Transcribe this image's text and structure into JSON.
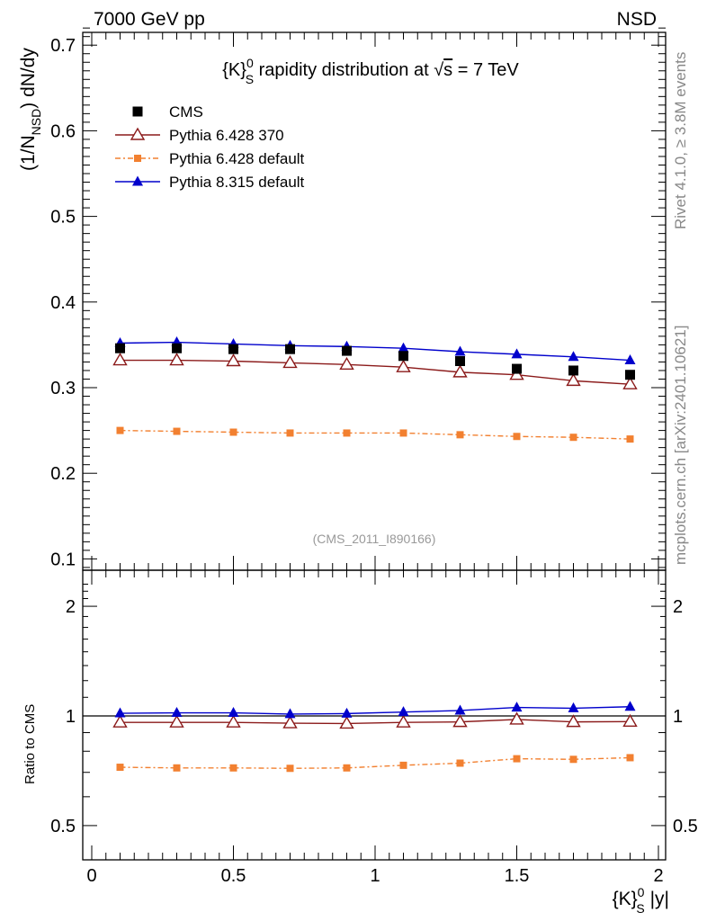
{
  "header": {
    "left": "7000 GeV pp",
    "right": "NSD"
  },
  "side_texts": {
    "rivet": "Rivet 4.1.0, ≥ 3.8M events",
    "mcplots": "mcplots.cern.ch [arXiv:2401.10621]"
  },
  "watermark": "(CMS_2011_I890166)",
  "title": {
    "prefix": "{K}",
    "sup": "0",
    "sub": "S",
    "rest": " rapidity distribution at ",
    "sqrt_symbol": "√",
    "sqrt_arg": "s",
    "energy": " = 7 TeV"
  },
  "ylabel_main": {
    "part1": "(1/N",
    "sub": "NSD",
    "part2": ") dN/dy"
  },
  "ylabel_ratio": "Ratio to CMS",
  "xlabel": {
    "prefix": "{K}",
    "sup": "0",
    "sub": "S",
    "suffix": " |y|"
  },
  "colors": {
    "cms": "#000000",
    "py6_370": "#8b1a1a",
    "py6_default": "#f28030",
    "py8": "#0000cc"
  },
  "chart_data": [
    {
      "type": "scatter",
      "panel": "main",
      "title": "{K}0S rapidity distribution at √s = 7 TeV",
      "xlabel": "{K}0S |y|",
      "ylabel": "(1/N_NSD) dN/dy",
      "xlim": [
        -0.05,
        2.05
      ],
      "ylim": [
        0.09,
        0.72
      ],
      "xticks": [
        "0",
        "0.5",
        "1",
        "1.5",
        "2"
      ],
      "yticks": [
        "0.1",
        "0.2",
        "0.3",
        "0.4",
        "0.5",
        "0.6",
        "0.7"
      ],
      "x": [
        0.1,
        0.3,
        0.5,
        0.7,
        0.9,
        1.1,
        1.3,
        1.5,
        1.7,
        1.9
      ],
      "series": [
        {
          "name": "CMS",
          "style": "data",
          "marker": "square",
          "values": [
            0.346,
            0.346,
            0.345,
            0.345,
            0.343,
            0.337,
            0.331,
            0.322,
            0.32,
            0.315
          ]
        },
        {
          "name": "Pythia 6.428 370",
          "style": "solid",
          "marker": "open-triangle",
          "values": [
            0.332,
            0.332,
            0.331,
            0.329,
            0.327,
            0.324,
            0.318,
            0.315,
            0.308,
            0.304
          ]
        },
        {
          "name": "Pythia 6.428 default",
          "style": "dashdot",
          "marker": "small-square",
          "values": [
            0.25,
            0.249,
            0.248,
            0.247,
            0.247,
            0.247,
            0.245,
            0.243,
            0.242,
            0.24
          ]
        },
        {
          "name": "Pythia 8.315 default",
          "style": "solid",
          "marker": "filled-triangle",
          "values": [
            0.352,
            0.353,
            0.351,
            0.349,
            0.348,
            0.346,
            0.342,
            0.339,
            0.336,
            0.332
          ]
        }
      ]
    },
    {
      "type": "scatter",
      "panel": "ratio",
      "ylabel": "Ratio to CMS",
      "xlim": [
        -0.05,
        2.05
      ],
      "ylim": [
        0.4,
        2.4
      ],
      "ytick_labels": [
        {
          "value": 0.5,
          "label": "0.5"
        },
        {
          "value": 1,
          "label": "1"
        },
        {
          "value": 2,
          "label": "2"
        }
      ],
      "log_scale": true,
      "x": [
        0.1,
        0.3,
        0.5,
        0.7,
        0.9,
        1.1,
        1.3,
        1.5,
        1.7,
        1.9
      ],
      "series": [
        {
          "name": "Pythia 6.428 370",
          "style": "solid",
          "marker": "open-triangle",
          "values": [
            0.96,
            0.96,
            0.96,
            0.955,
            0.953,
            0.96,
            0.963,
            0.978,
            0.963,
            0.965
          ]
        },
        {
          "name": "Pythia 6.428 default",
          "style": "dashdot",
          "marker": "small-square",
          "values": [
            0.723,
            0.72,
            0.72,
            0.718,
            0.72,
            0.732,
            0.742,
            0.763,
            0.76,
            0.768
          ]
        },
        {
          "name": "Pythia 8.315 default",
          "style": "solid",
          "marker": "filled-triangle",
          "values": [
            1.017,
            1.02,
            1.02,
            1.012,
            1.015,
            1.025,
            1.035,
            1.055,
            1.05,
            1.06
          ]
        }
      ]
    }
  ]
}
